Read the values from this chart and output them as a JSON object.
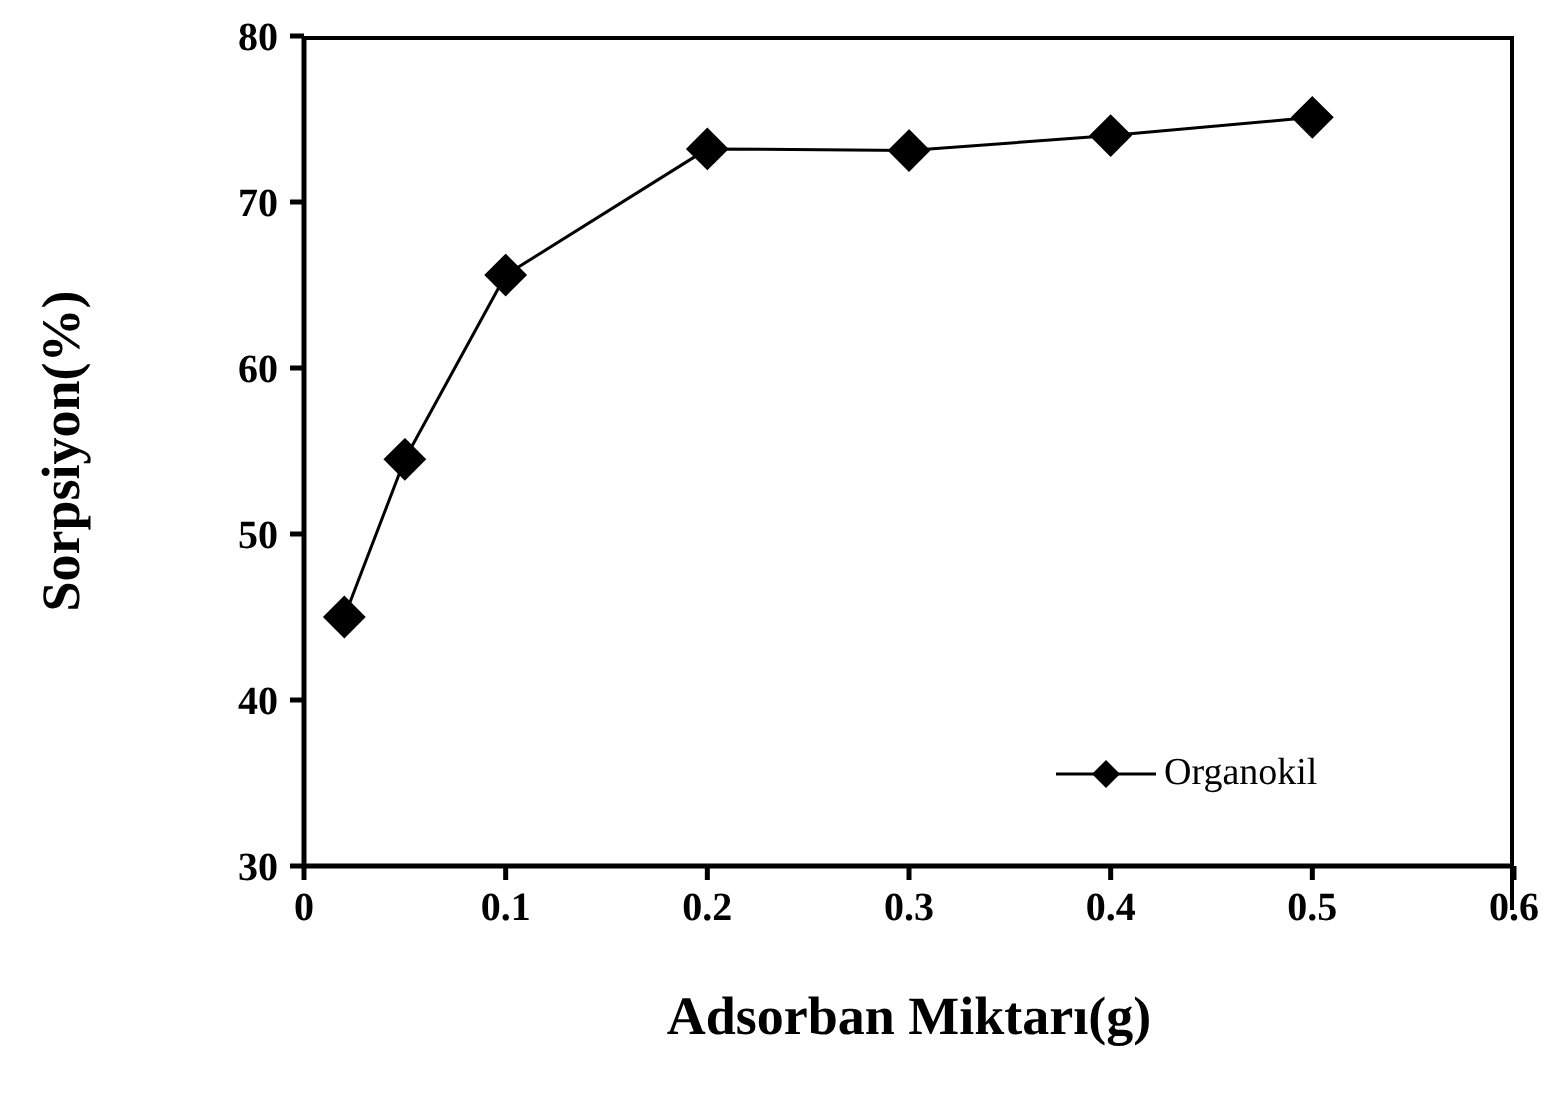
{
  "chart_data": {
    "type": "line",
    "xlabel": "Adsorban Miktarı(g)",
    "ylabel": "Sorpsiyon(%)",
    "x": [
      0.02,
      0.05,
      0.1,
      0.2,
      0.3,
      0.4,
      0.5
    ],
    "series": [
      {
        "name": "Organokil",
        "color": "#000000",
        "values": [
          45.0,
          54.5,
          65.6,
          73.2,
          73.1,
          74.0,
          75.1
        ]
      }
    ],
    "xlim": [
      0,
      0.6
    ],
    "xticks": [
      0,
      0.1,
      0.2,
      0.3,
      0.4,
      0.5,
      0.6
    ],
    "ylim": [
      30,
      80
    ],
    "yticks": [
      30,
      40,
      50,
      60,
      70,
      80
    ],
    "grid": false,
    "legend": "bottom right",
    "marker": "diamond",
    "line_style": "solid"
  }
}
